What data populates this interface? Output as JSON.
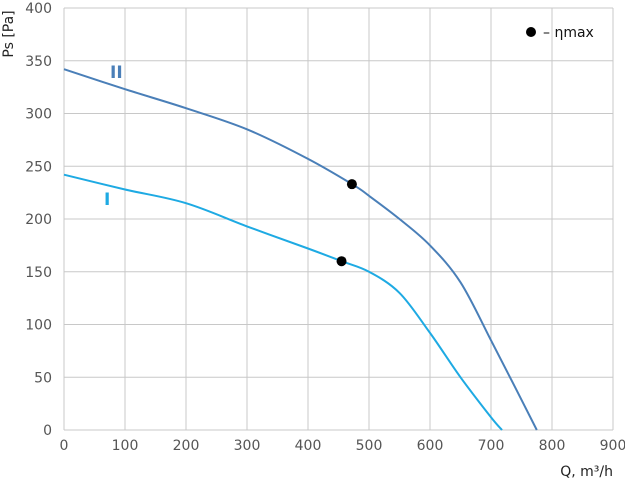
{
  "chart_data": {
    "type": "line",
    "xlabel": "Q, m³/h",
    "ylabel": "Ps [Pa]",
    "xlim": [
      0,
      900
    ],
    "ylim": [
      0,
      400
    ],
    "xticks": [
      0,
      100,
      200,
      300,
      400,
      500,
      600,
      700,
      800,
      900
    ],
    "yticks": [
      0,
      50,
      100,
      150,
      200,
      250,
      300,
      350,
      400
    ],
    "grid": true,
    "legend": {
      "marker_label": "– ηmax",
      "placement": "top-right"
    },
    "series": [
      {
        "name": "II",
        "color": "#4a7fb8",
        "x": [
          0,
          100,
          200,
          300,
          400,
          475,
          500,
          550,
          600,
          650,
          700,
          740,
          775
        ],
        "y": [
          342,
          323,
          305,
          285,
          257,
          232,
          222,
          200,
          175,
          140,
          85,
          40,
          0
        ],
        "eta_max": {
          "x": 472,
          "y": 233
        }
      },
      {
        "name": "I",
        "color": "#1eaae3",
        "x": [
          0,
          100,
          200,
          300,
          400,
          455,
          500,
          550,
          600,
          650,
          700,
          718
        ],
        "y": [
          242,
          228,
          215,
          193,
          172,
          160,
          150,
          130,
          92,
          50,
          12,
          0
        ],
        "eta_max": {
          "x": 455,
          "y": 160
        }
      }
    ]
  }
}
